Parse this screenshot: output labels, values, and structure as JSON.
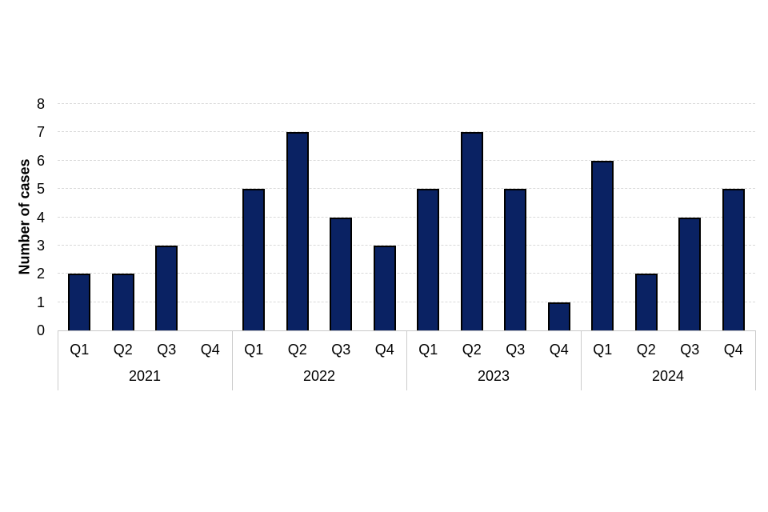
{
  "chart_data": {
    "type": "bar",
    "title": "",
    "xlabel": "",
    "ylabel": "Number of cases",
    "ylim": [
      0,
      8
    ],
    "yticks": [
      0,
      1,
      2,
      3,
      4,
      5,
      6,
      7,
      8
    ],
    "grid": true,
    "legend": false,
    "bar_color": "#0a2263",
    "bar_border_color": "#000000",
    "gridline_color": "#d9d9d9",
    "axis_line_color": "#c9c9c9",
    "groups": [
      {
        "year": "2021",
        "quarters": [
          "Q1",
          "Q2",
          "Q3",
          "Q4"
        ],
        "values": [
          2,
          2,
          3,
          0
        ]
      },
      {
        "year": "2022",
        "quarters": [
          "Q1",
          "Q2",
          "Q3",
          "Q4"
        ],
        "values": [
          5,
          7,
          4,
          3
        ]
      },
      {
        "year": "2023",
        "quarters": [
          "Q1",
          "Q2",
          "Q3",
          "Q4"
        ],
        "values": [
          5,
          7,
          5,
          1
        ]
      },
      {
        "year": "2024",
        "quarters": [
          "Q1",
          "Q2",
          "Q3",
          "Q4"
        ],
        "values": [
          6,
          2,
          4,
          5
        ]
      }
    ]
  }
}
